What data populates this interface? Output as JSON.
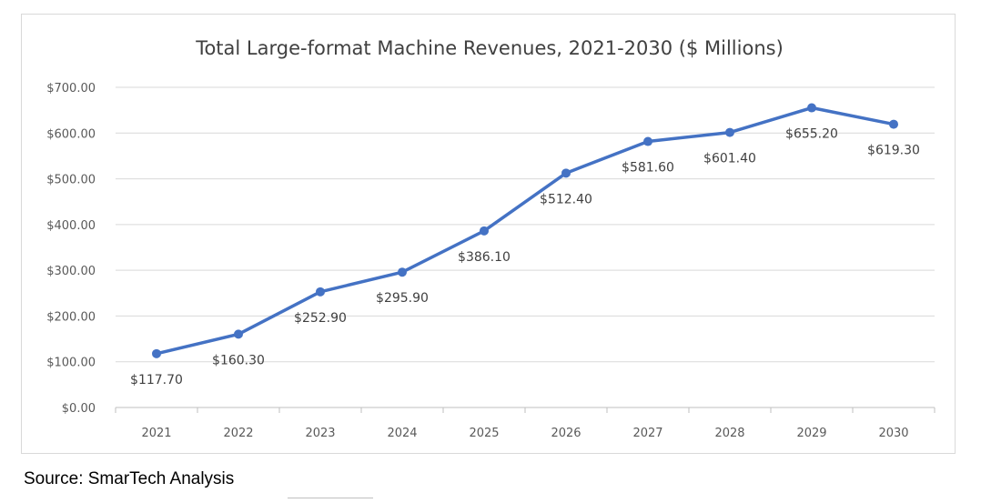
{
  "colors": {
    "line": "#4472c4",
    "grid": "#d9d9d9",
    "text": "#595959",
    "title": "#404040"
  },
  "source": "Source: SmarTech Analysis",
  "chart_data": {
    "type": "line",
    "title": "Total Large-format Machine Revenues, 2021-2030 ($ Millions)",
    "xlabel": "",
    "ylabel": "",
    "categories": [
      "2021",
      "2022",
      "2023",
      "2024",
      "2025",
      "2026",
      "2027",
      "2028",
      "2029",
      "2030"
    ],
    "series": [
      {
        "values": [
          117.7,
          160.3,
          252.9,
          295.9,
          386.1,
          512.4,
          581.6,
          601.4,
          655.2,
          619.3
        ]
      }
    ],
    "data_labels": [
      "$117.70",
      "$160.30",
      "$252.90",
      "$295.90",
      "$386.10",
      "$512.40",
      "$581.60",
      "$601.40",
      "$655.20",
      "$619.30"
    ],
    "ylim": [
      0,
      700
    ],
    "yticks": [
      0,
      100,
      200,
      300,
      400,
      500,
      600,
      700
    ],
    "ytick_labels": [
      "$0.00",
      "$100.00",
      "$200.00",
      "$300.00",
      "$400.00",
      "$500.00",
      "$600.00",
      "$700.00"
    ],
    "grid": true,
    "legend": "none"
  }
}
